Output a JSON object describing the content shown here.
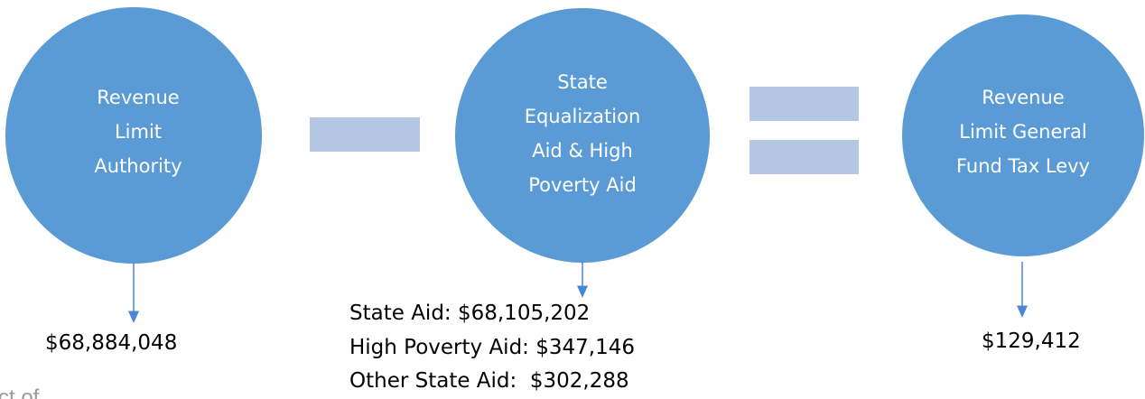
{
  "nodes": [
    {
      "label": [
        "Revenue",
        "Limit",
        "Authority"
      ],
      "values": [
        "$68,884,048"
      ]
    },
    {
      "label": [
        "State",
        "Equalization",
        "Aid & High",
        "Poverty Aid"
      ],
      "values": [
        "State Aid: $68,105,202",
        "High Poverty Aid: $347,146",
        "Other State Aid:  $302,288"
      ]
    },
    {
      "label": [
        "Revenue",
        "Limit General",
        "Fund Tax Levy"
      ],
      "values": [
        "$129,412"
      ]
    }
  ],
  "footer_fragment": "ct of"
}
